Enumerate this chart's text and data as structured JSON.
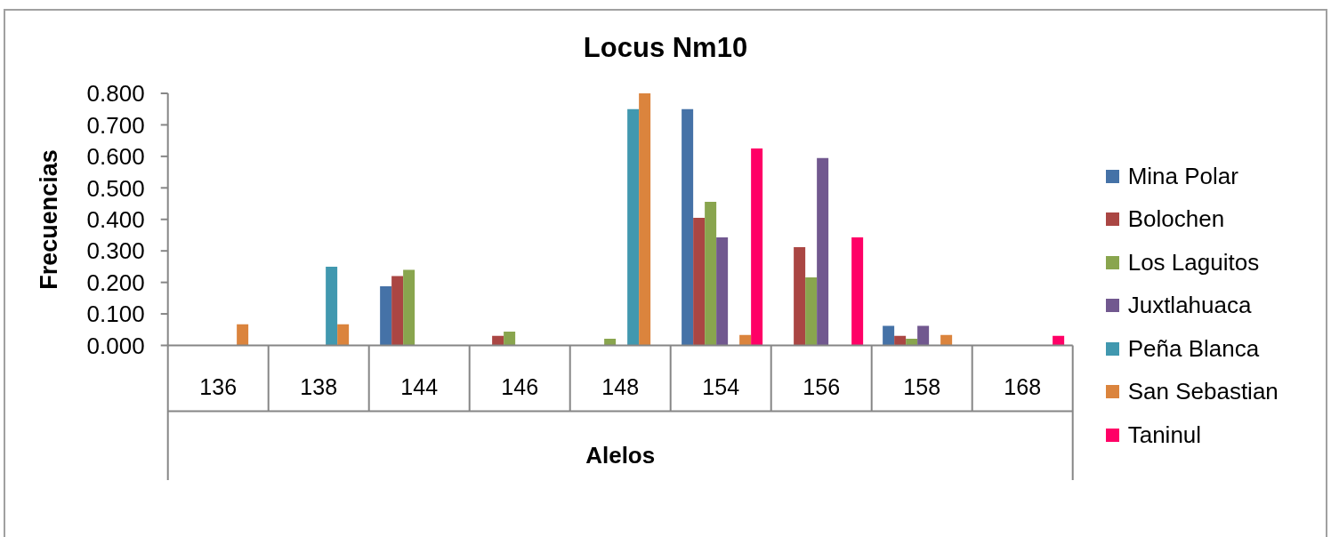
{
  "chart_data": {
    "type": "bar",
    "title": "Locus Nm10",
    "xlabel": "Alelos",
    "ylabel": "Frecuencias",
    "categories": [
      "136",
      "138",
      "144",
      "146",
      "148",
      "154",
      "156",
      "158",
      "168"
    ],
    "series": [
      {
        "name": "Mina Polar",
        "color": "#4572a7",
        "values": [
          null,
          null,
          0.188,
          null,
          null,
          0.75,
          null,
          0.062,
          null
        ]
      },
      {
        "name": "Bolochen",
        "color": "#aa4643",
        "values": [
          null,
          null,
          0.22,
          0.03,
          null,
          0.405,
          0.312,
          0.03,
          null
        ]
      },
      {
        "name": "Los Laguitos",
        "color": "#89a54e",
        "values": [
          null,
          null,
          0.24,
          0.044,
          0.021,
          0.456,
          0.216,
          0.021,
          null
        ]
      },
      {
        "name": "Juxtlahuaca",
        "color": "#71588f",
        "values": [
          null,
          null,
          null,
          null,
          null,
          0.343,
          0.595,
          0.062,
          null
        ]
      },
      {
        "name": "Peña Blanca",
        "color": "#4198af",
        "values": [
          null,
          0.25,
          null,
          null,
          0.75,
          null,
          null,
          null,
          null
        ]
      },
      {
        "name": "San Sebastian",
        "color": "#db843d",
        "values": [
          0.067,
          0.067,
          null,
          null,
          0.8,
          0.033,
          null,
          0.033,
          null
        ]
      },
      {
        "name": "Taninul",
        "color": "#ff0066",
        "values": [
          null,
          null,
          null,
          null,
          null,
          0.625,
          0.343,
          null,
          0.03
        ]
      }
    ],
    "ylim": [
      0,
      0.8
    ],
    "yticks": [
      {
        "value": 0,
        "label": "0.000"
      },
      {
        "value": 0.1,
        "label": "0.100"
      },
      {
        "value": 0.2,
        "label": "0.200"
      },
      {
        "value": 0.3,
        "label": "0.300"
      },
      {
        "value": 0.4,
        "label": "0.400"
      },
      {
        "value": 0.5,
        "label": "0.500"
      },
      {
        "value": 0.6,
        "label": "0.600"
      },
      {
        "value": 0.7,
        "label": "0.700"
      },
      {
        "value": 0.8,
        "label": "0.800"
      }
    ],
    "grid": false,
    "legend": "right"
  }
}
